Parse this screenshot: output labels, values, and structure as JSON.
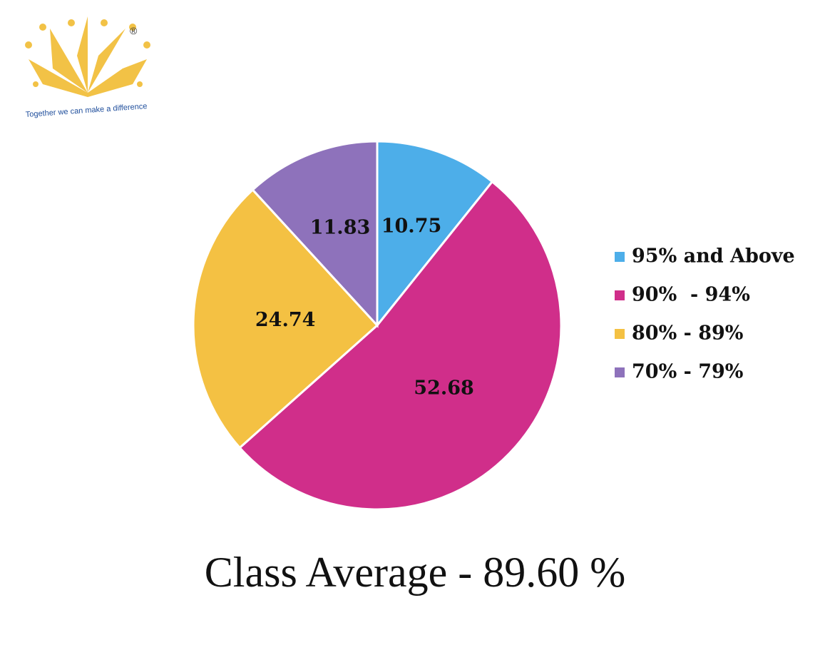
{
  "logo": {
    "tagline": "Together we can make a difference",
    "registered_mark": "®",
    "icon": "crown-sunburst-logo",
    "color": "#f2c246",
    "tagline_color": "#1f4e9c"
  },
  "chart_data": {
    "type": "pie",
    "categories": [
      "95% and Above",
      "90%  - 94%",
      "80% - 89%",
      "70% - 79%"
    ],
    "values": [
      10.75,
      52.68,
      24.74,
      11.83
    ],
    "data_labels": [
      "10.75",
      "52.68",
      "24.74",
      "11.83"
    ],
    "colors": [
      "#4daee9",
      "#d02e8a",
      "#f4c143",
      "#8e72bb"
    ],
    "legend_position": "right",
    "start": "top, clockwise"
  },
  "caption": "Class Average - 89.60 %"
}
